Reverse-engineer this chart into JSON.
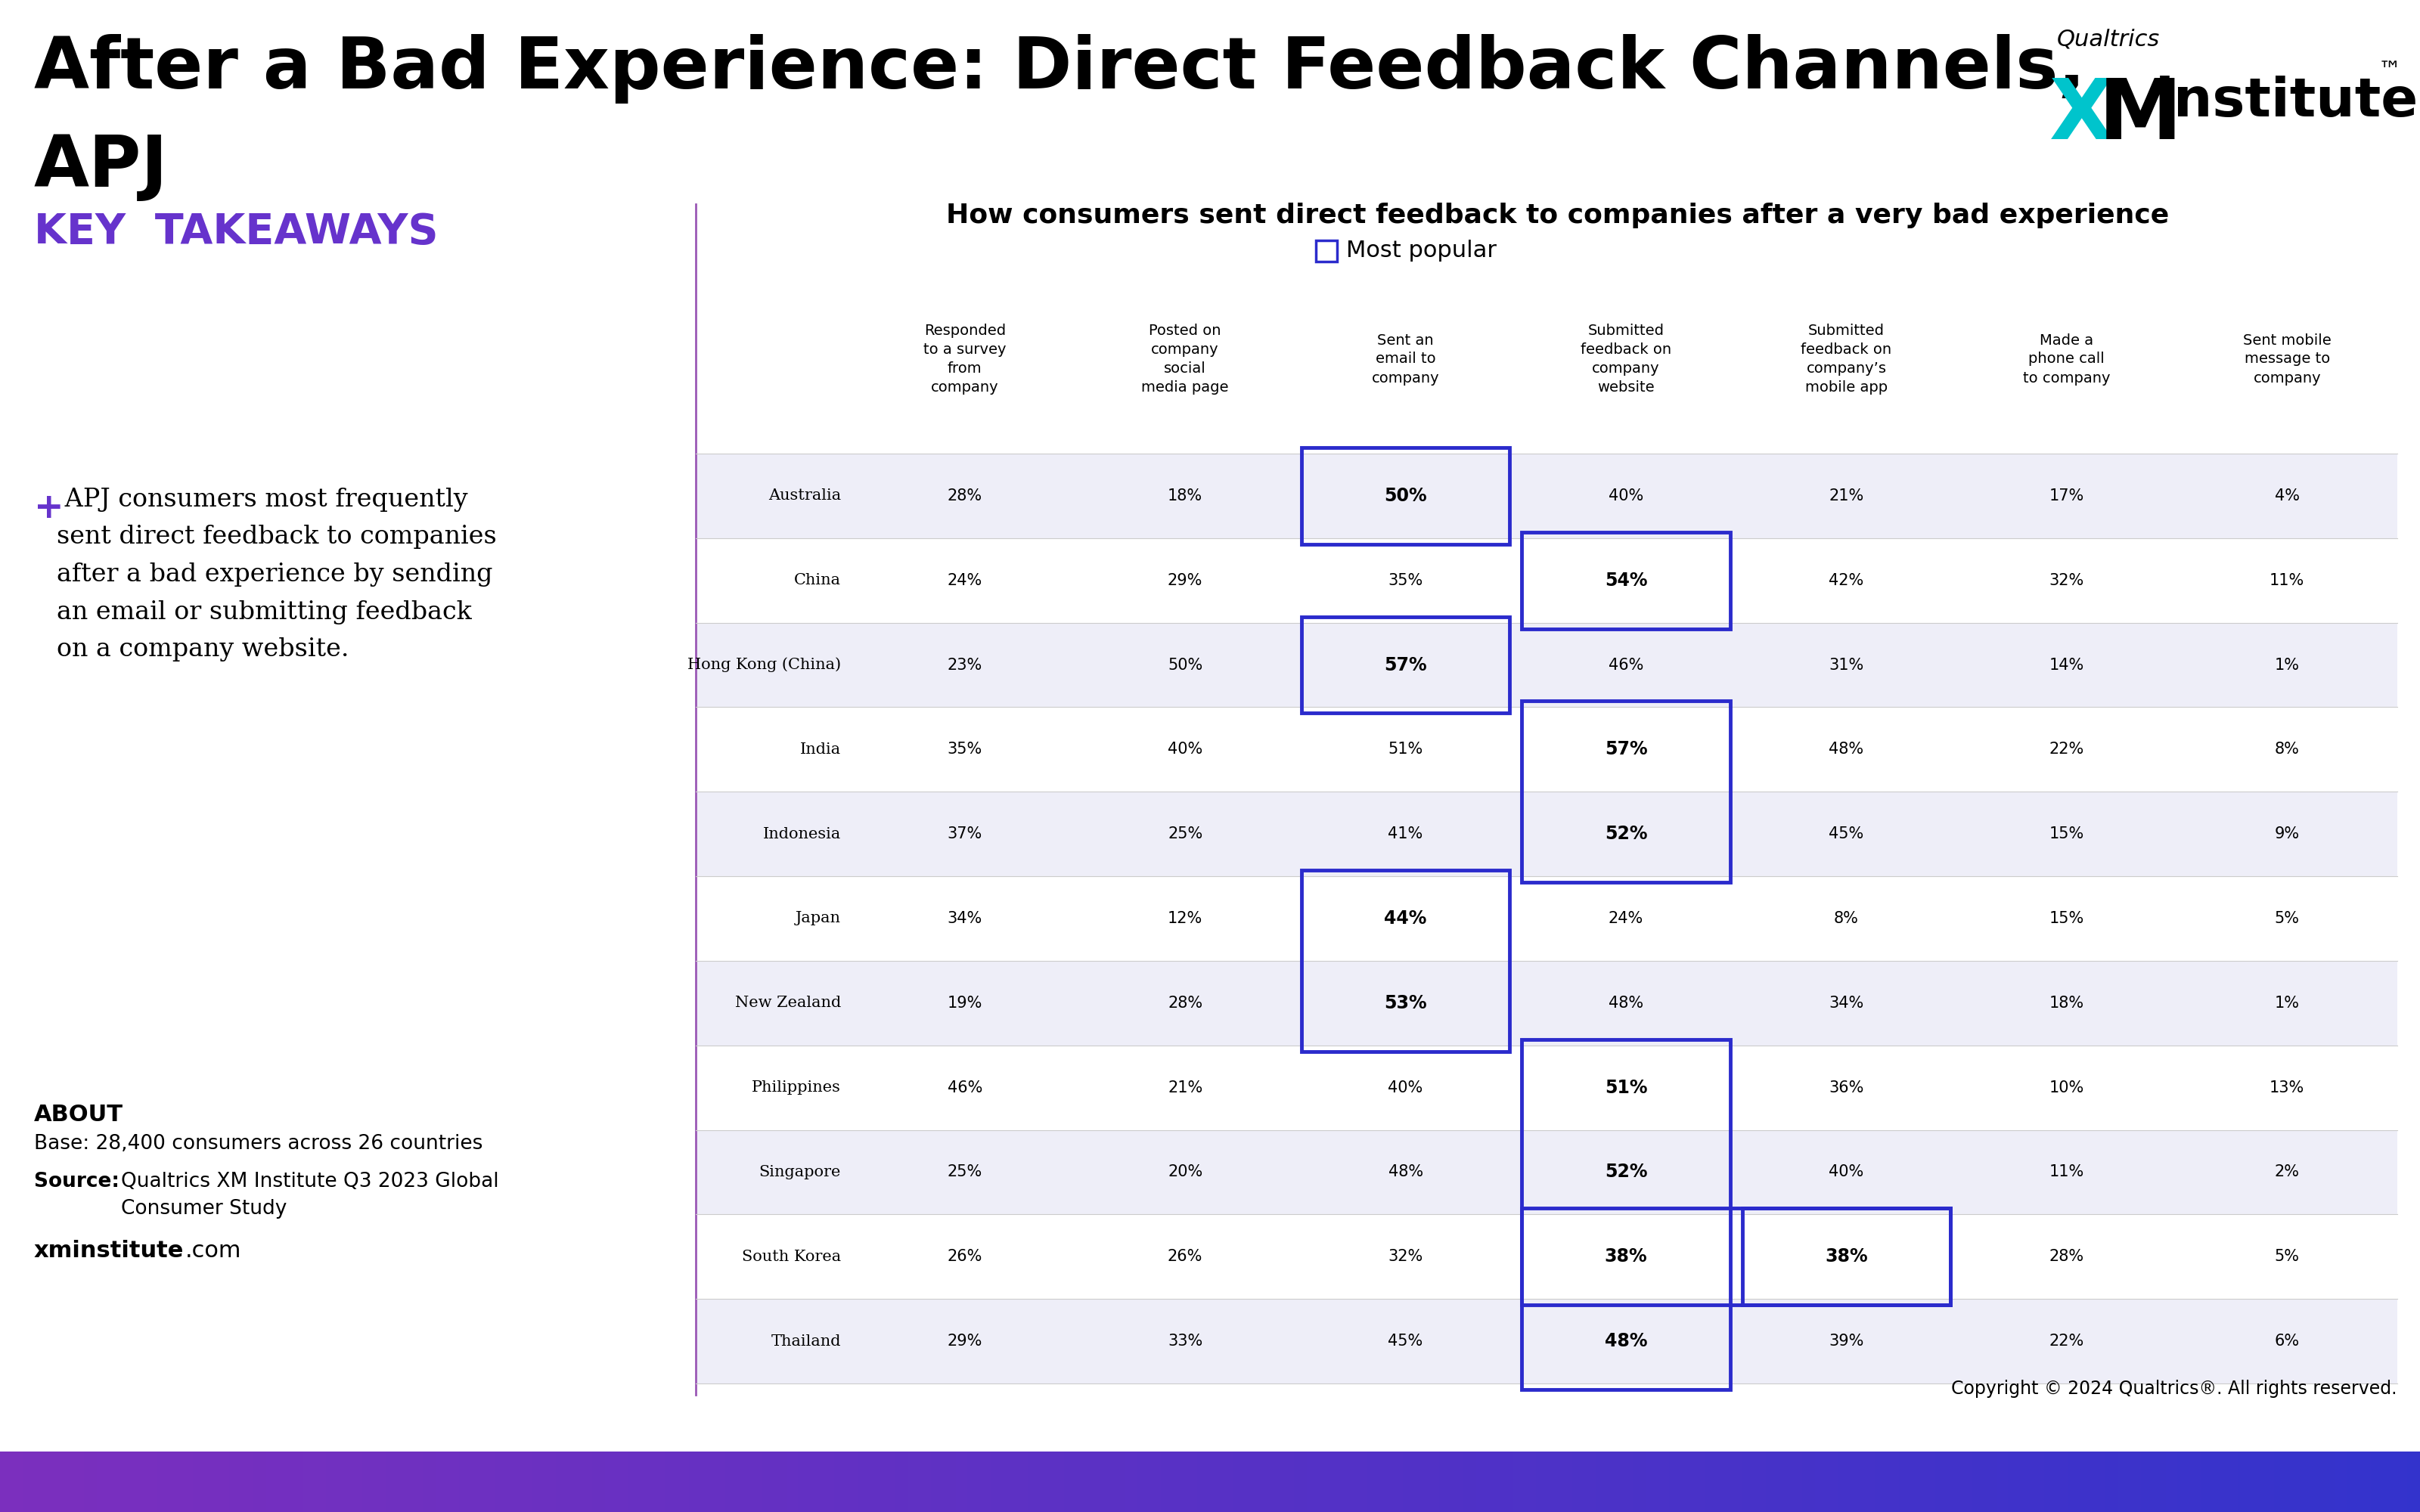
{
  "title_line1": "After a Bad Experience: Direct Feedback Channels,",
  "title_line2": "APJ",
  "subtitle": "How consumers sent direct feedback to companies after a very bad experience",
  "legend_label": "Most popular",
  "columns": [
    "Responded\nto a survey\nfrom\ncompany",
    "Posted on\ncompany\nsocial\nmedia page",
    "Sent an\nemail to\ncompany",
    "Submitted\nfeedback on\ncompany\nwebsite",
    "Submitted\nfeedback on\ncompany’s\nmobile app",
    "Made a\nphone call\nto company",
    "Sent mobile\nmessage to\ncompany"
  ],
  "countries": [
    "Australia",
    "China",
    "Hong Kong (China)",
    "India",
    "Indonesia",
    "Japan",
    "New Zealand",
    "Philippines",
    "Singapore",
    "South Korea",
    "Thailand"
  ],
  "data": [
    [
      "28%",
      "18%",
      "50%",
      "40%",
      "21%",
      "17%",
      "4%"
    ],
    [
      "24%",
      "29%",
      "35%",
      "54%",
      "42%",
      "32%",
      "11%"
    ],
    [
      "23%",
      "50%",
      "57%",
      "46%",
      "31%",
      "14%",
      "1%"
    ],
    [
      "35%",
      "40%",
      "51%",
      "57%",
      "48%",
      "22%",
      "8%"
    ],
    [
      "37%",
      "25%",
      "41%",
      "52%",
      "45%",
      "15%",
      "9%"
    ],
    [
      "34%",
      "12%",
      "44%",
      "24%",
      "8%",
      "15%",
      "5%"
    ],
    [
      "19%",
      "28%",
      "53%",
      "48%",
      "34%",
      "18%",
      "1%"
    ],
    [
      "46%",
      "21%",
      "40%",
      "51%",
      "36%",
      "10%",
      "13%"
    ],
    [
      "25%",
      "20%",
      "48%",
      "52%",
      "40%",
      "11%",
      "2%"
    ],
    [
      "26%",
      "26%",
      "32%",
      "38%",
      "38%",
      "28%",
      "5%"
    ],
    [
      "29%",
      "33%",
      "45%",
      "48%",
      "39%",
      "22%",
      "6%"
    ]
  ],
  "highlighted": [
    [
      2
    ],
    [
      3
    ],
    [
      2
    ],
    [
      3
    ],
    [
      3
    ],
    [
      2
    ],
    [
      2
    ],
    [
      3
    ],
    [
      3
    ],
    [
      3,
      4
    ],
    [
      3
    ]
  ],
  "row_colors": [
    "#eeeef8",
    "#ffffff",
    "#eeeef8",
    "#ffffff",
    "#eeeef8",
    "#ffffff",
    "#eeeef8",
    "#ffffff",
    "#eeeef8",
    "#ffffff",
    "#eeeef8"
  ],
  "highlight_color": "#2b2bcc",
  "purple_color": "#7b2fbe",
  "key_takeaways_color": "#6633cc",
  "xm_cyan_color": "#00c4cc",
  "background_color": "#ffffff",
  "divider_color": "#9b59b6",
  "col_header_fontsize": 14,
  "data_fontsize": 15,
  "country_fontsize": 15,
  "about_text": "ABOUT",
  "base_text": "Base: 28,400 consumers across 26 countries",
  "source_label": "Source: ",
  "source_text": "Qualtrics XM Institute Q3 2023 Global\nConsumer Study",
  "website_bold": "xminstitute",
  "website_normal": ".com",
  "copyright_text": "Copyright © 2024 Qualtrics®. All rights reserved.",
  "key_takeaway_plus": "+",
  "key_takeaway_body": " APJ consumers most frequently\nsent direct feedback to companies\nafter a bad experience by sending\nan email or submitting feedback\non a company website."
}
